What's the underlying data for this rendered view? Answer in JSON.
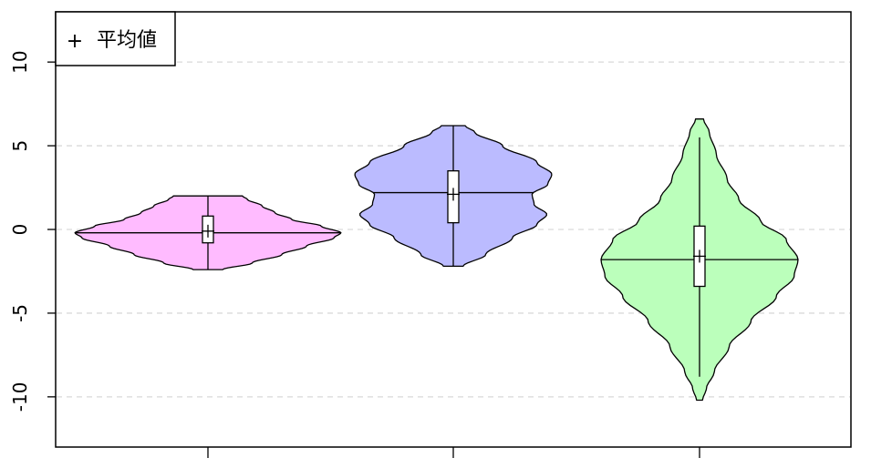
{
  "chart_data": {
    "type": "violin",
    "ylim": [
      -13,
      13
    ],
    "y_ticks": [
      "10",
      "5",
      "0",
      "-5",
      "-10"
    ],
    "grid": "horizontal-dashed",
    "legend": {
      "position": "top-left",
      "symbol": "+",
      "label": "平均値"
    },
    "series": [
      {
        "color": "#ffbbff",
        "min": -2.4,
        "max": 2.0,
        "median": -0.2,
        "mean": -0.1,
        "q1": -0.8,
        "q3": 0.8,
        "whisker_low": -2.4,
        "whisker_high": 2.0,
        "profile": [
          [
            -2.4,
            0.15
          ],
          [
            -2.0,
            0.45
          ],
          [
            -1.5,
            0.75
          ],
          [
            -1.0,
            1.0
          ],
          [
            -0.5,
            1.28
          ],
          [
            -0.2,
            1.35
          ],
          [
            0.2,
            1.15
          ],
          [
            0.6,
            0.85
          ],
          [
            1.0,
            0.68
          ],
          [
            1.4,
            0.55
          ],
          [
            1.8,
            0.4
          ],
          [
            2.0,
            0.35
          ]
        ]
      },
      {
        "color": "#bbbbff",
        "min": -2.2,
        "max": 6.2,
        "median": 2.2,
        "mean": 2.1,
        "q1": 0.4,
        "q3": 3.5,
        "whisker_low": -2.2,
        "whisker_high": 6.2,
        "profile": [
          [
            -2.2,
            0.1
          ],
          [
            -1.5,
            0.33
          ],
          [
            -0.5,
            0.6
          ],
          [
            0.3,
            0.85
          ],
          [
            0.9,
            0.95
          ],
          [
            1.5,
            0.82
          ],
          [
            2.1,
            0.8
          ],
          [
            2.7,
            0.96
          ],
          [
            3.3,
            1.0
          ],
          [
            4.0,
            0.85
          ],
          [
            5.0,
            0.5
          ],
          [
            5.8,
            0.22
          ],
          [
            6.2,
            0.12
          ]
        ]
      },
      {
        "color": "#bbffbb",
        "min": -10.2,
        "max": 6.6,
        "median": -1.8,
        "mean": -1.6,
        "q1": -3.4,
        "q3": 0.2,
        "whisker_low": -8.8,
        "whisker_high": 5.5,
        "profile": [
          [
            -10.2,
            0.03
          ],
          [
            -9.5,
            0.07
          ],
          [
            -8.5,
            0.15
          ],
          [
            -7.0,
            0.3
          ],
          [
            -5.5,
            0.52
          ],
          [
            -4.0,
            0.78
          ],
          [
            -2.8,
            0.96
          ],
          [
            -1.8,
            1.0
          ],
          [
            -0.6,
            0.88
          ],
          [
            0.5,
            0.62
          ],
          [
            1.8,
            0.4
          ],
          [
            3.0,
            0.28
          ],
          [
            4.5,
            0.17
          ],
          [
            5.8,
            0.1
          ],
          [
            6.6,
            0.04
          ]
        ]
      }
    ]
  }
}
